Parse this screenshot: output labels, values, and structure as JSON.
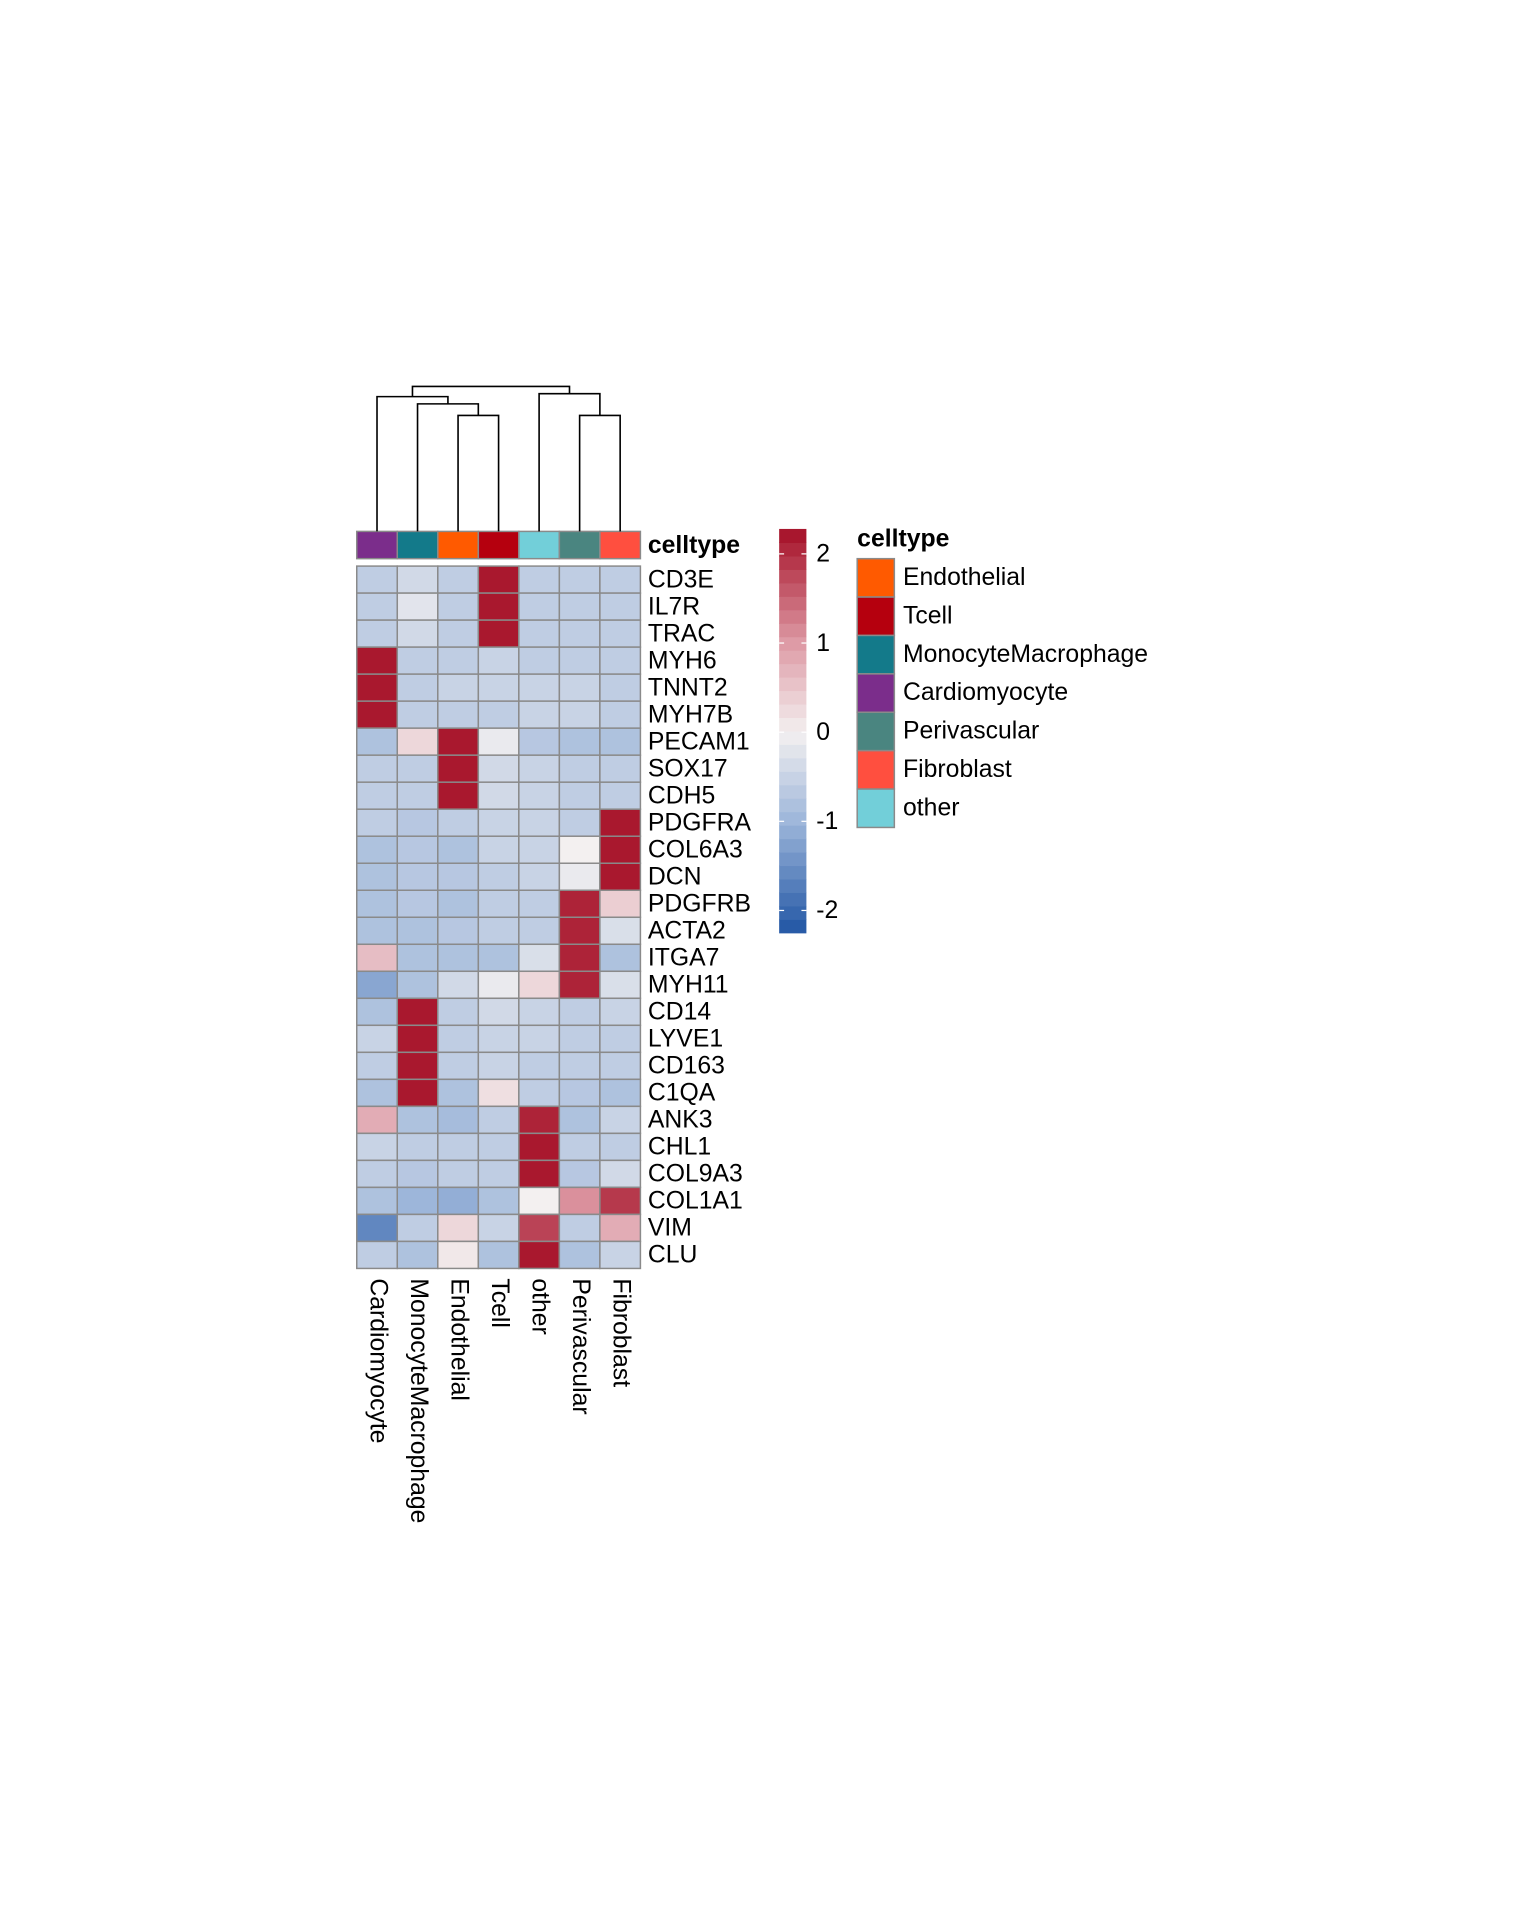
{
  "chart_data": {
    "type": "heatmap",
    "categories": [
      "Cardiomyocyte",
      "MonocyteMacrophage",
      "Endothelial",
      "Tcell",
      "other",
      "Perivascular",
      "Fibroblast"
    ],
    "rows": [
      "CD3E",
      "IL7R",
      "TRAC",
      "MYH6",
      "TNNT2",
      "MYH7B",
      "PECAM1",
      "SOX17",
      "CDH5",
      "PDGFRA",
      "COL6A3",
      "DCN",
      "PDGFRB",
      "ACTA2",
      "ITGA7",
      "MYH11",
      "CD14",
      "LYVE1",
      "CD163",
      "C1QA",
      "ANK3",
      "CHL1",
      "COL9A3",
      "COL1A1",
      "VIM",
      "CLU"
    ],
    "values": [
      [
        -0.6,
        -0.4,
        -0.6,
        2.2,
        -0.6,
        -0.6,
        -0.6
      ],
      [
        -0.6,
        -0.2,
        -0.6,
        2.2,
        -0.6,
        -0.6,
        -0.6
      ],
      [
        -0.6,
        -0.4,
        -0.6,
        2.2,
        -0.6,
        -0.6,
        -0.6
      ],
      [
        2.2,
        -0.6,
        -0.6,
        -0.5,
        -0.6,
        -0.6,
        -0.6
      ],
      [
        2.2,
        -0.6,
        -0.5,
        -0.5,
        -0.5,
        -0.5,
        -0.6
      ],
      [
        2.2,
        -0.6,
        -0.6,
        -0.6,
        -0.5,
        -0.5,
        -0.6
      ],
      [
        -0.8,
        0.3,
        2.2,
        -0.1,
        -0.7,
        -0.8,
        -0.8
      ],
      [
        -0.6,
        -0.6,
        2.2,
        -0.4,
        -0.5,
        -0.6,
        -0.6
      ],
      [
        -0.6,
        -0.6,
        2.2,
        -0.4,
        -0.5,
        -0.6,
        -0.6
      ],
      [
        -0.6,
        -0.7,
        -0.6,
        -0.5,
        -0.5,
        -0.6,
        2.2
      ],
      [
        -0.8,
        -0.7,
        -0.8,
        -0.5,
        -0.5,
        0.0,
        2.2
      ],
      [
        -0.8,
        -0.7,
        -0.7,
        -0.6,
        -0.5,
        -0.1,
        2.2
      ],
      [
        -0.8,
        -0.7,
        -0.8,
        -0.6,
        -0.6,
        2.1,
        0.4
      ],
      [
        -0.8,
        -0.8,
        -0.7,
        -0.6,
        -0.6,
        2.1,
        -0.3
      ],
      [
        0.6,
        -0.8,
        -0.8,
        -0.8,
        -0.3,
        2.1,
        -0.8
      ],
      [
        -1.2,
        -0.8,
        -0.4,
        -0.1,
        0.3,
        2.1,
        -0.3
      ],
      [
        -0.8,
        2.2,
        -0.6,
        -0.4,
        -0.5,
        -0.6,
        -0.5
      ],
      [
        -0.5,
        2.2,
        -0.6,
        -0.5,
        -0.5,
        -0.6,
        -0.6
      ],
      [
        -0.6,
        2.2,
        -0.6,
        -0.5,
        -0.6,
        -0.6,
        -0.6
      ],
      [
        -0.8,
        2.2,
        -0.8,
        0.2,
        -0.6,
        -0.7,
        -0.8
      ],
      [
        0.8,
        -0.8,
        -0.9,
        -0.6,
        2.1,
        -0.8,
        -0.5
      ],
      [
        -0.5,
        -0.6,
        -0.6,
        -0.6,
        2.2,
        -0.6,
        -0.6
      ],
      [
        -0.6,
        -0.7,
        -0.6,
        -0.6,
        2.2,
        -0.7,
        -0.4
      ],
      [
        -0.8,
        -1.0,
        -1.1,
        -0.8,
        0.0,
        1.1,
        1.9
      ],
      [
        -1.6,
        -0.6,
        0.3,
        -0.5,
        1.8,
        -0.6,
        0.8
      ],
      [
        -0.6,
        -0.8,
        0.1,
        -0.8,
        2.2,
        -0.8,
        -0.5
      ]
    ],
    "clim": [
      -2.25,
      2.28
    ],
    "cticks": [
      2,
      1,
      0,
      -1,
      -2
    ],
    "colorscale": [
      [
        -2.25,
        "#2155a4"
      ],
      [
        -1,
        "#9db6da"
      ],
      [
        0,
        "#f3f0f0"
      ],
      [
        1,
        "#de9ba6"
      ],
      [
        2.28,
        "#a50f26"
      ]
    ],
    "dendrogram": {
      "merge": [
        [
          -3,
          -4
        ],
        [
          -6,
          -7
        ],
        [
          -2,
          1
        ],
        [
          -1,
          3
        ],
        [
          -5,
          2
        ],
        [
          4,
          5
        ]
      ],
      "height": [
        0.8,
        0.8,
        0.88,
        0.93,
        0.95,
        1.0
      ]
    },
    "annotation": {
      "name": "celltype",
      "values": [
        "Cardiomyocyte",
        "MonocyteMacrophage",
        "Endothelial",
        "Tcell",
        "other",
        "Perivascular",
        "Fibroblast"
      ]
    },
    "legend": {
      "title": "celltype",
      "items": [
        {
          "label": "Endothelial",
          "color": "#ff5a00"
        },
        {
          "label": "Tcell",
          "color": "#b5000e"
        },
        {
          "label": "MonocyteMacrophage",
          "color": "#137a8a"
        },
        {
          "label": "Cardiomyocyte",
          "color": "#7b2d8b"
        },
        {
          "label": "Perivascular",
          "color": "#4a8580"
        },
        {
          "label": "Fibroblast",
          "color": "#ff4f3f"
        },
        {
          "label": "other",
          "color": "#72cfd9"
        }
      ]
    }
  }
}
